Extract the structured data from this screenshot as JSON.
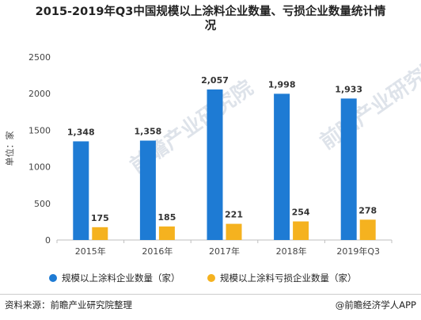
{
  "title": {
    "line1": "2015-2019年Q3中国规模以上涂料企业数量、亏损企业数量统计情",
    "line2": "况"
  },
  "watermark_text": "前瞻产业研究院",
  "chart_data": {
    "type": "bar",
    "title": "2015-2019年Q3中国规模以上涂料企业数量、亏损企业数量统计情况",
    "ylabel": "单位：家",
    "xlabel": "",
    "categories": [
      "2015年",
      "2016年",
      "2017年",
      "2018年",
      "2019年Q3"
    ],
    "ylim": [
      0,
      2500
    ],
    "yticks": [
      0,
      500,
      1000,
      1500,
      2000,
      2500
    ],
    "grid": false,
    "legend_position": "bottom",
    "series": [
      {
        "name": "规模以上涂料企业数量（家）",
        "color": "#1e7bd4",
        "values": [
          1348,
          1358,
          2057,
          1998,
          1933
        ],
        "labels": [
          "1,348",
          "1,358",
          "2,057",
          "1,998",
          "1,933"
        ]
      },
      {
        "name": "规模以上涂料亏损企业数量（家）",
        "color": "#f5b21f",
        "values": [
          175,
          185,
          221,
          254,
          278
        ],
        "labels": [
          "175",
          "185",
          "221",
          "254",
          "278"
        ]
      }
    ]
  },
  "footer": {
    "source": "资料来源：前瞻产业研究院整理",
    "credit": "@前瞻经济学人APP"
  }
}
